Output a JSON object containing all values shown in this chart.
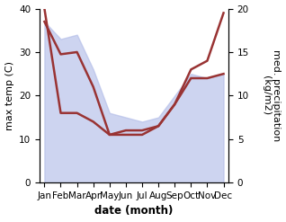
{
  "months": [
    "Jan",
    "Feb",
    "Mar",
    "Apr",
    "May",
    "Jun",
    "Jul",
    "Aug",
    "Sep",
    "Oct",
    "Nov",
    "Dec"
  ],
  "x": [
    0,
    1,
    2,
    3,
    4,
    5,
    6,
    7,
    8,
    9,
    10,
    11
  ],
  "temp": [
    37,
    29.5,
    30,
    22,
    11,
    11,
    11,
    13,
    18,
    24,
    24,
    25
  ],
  "precip": [
    20,
    8,
    8,
    7,
    5.5,
    6,
    6,
    6.5,
    9,
    13,
    14,
    19.5
  ],
  "fill_top": [
    37,
    33,
    34,
    26,
    16,
    15,
    14,
    15,
    20,
    25,
    24,
    25
  ],
  "temp_color": "#993333",
  "fill_color": "#b3bde8",
  "fill_alpha": 0.65,
  "ylabel_left": "max temp (C)",
  "ylabel_right": "med. precipitation\n(kg/m2)",
  "xlabel": "date (month)",
  "ylim_left": [
    0,
    40
  ],
  "ylim_right": [
    0,
    20
  ],
  "yticks_left": [
    0,
    10,
    20,
    30,
    40
  ],
  "yticks_right": [
    0,
    5,
    10,
    15,
    20
  ],
  "label_fontsize": 8,
  "tick_fontsize": 7.5,
  "xlabel_fontsize": 8.5,
  "line_width": 1.8
}
